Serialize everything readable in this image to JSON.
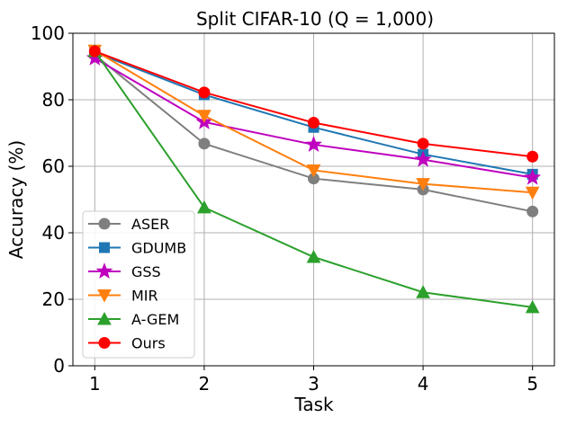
{
  "chart_data": {
    "type": "line",
    "title": "Split CIFAR-10 (Q = 1,000)",
    "xlabel": "Task",
    "ylabel": "Accuracy (%)",
    "x": [
      1,
      2,
      3,
      4,
      5
    ],
    "xticks": [
      "1",
      "2",
      "3",
      "4",
      "5"
    ],
    "yticks": [
      "0",
      "20",
      "40",
      "60",
      "80",
      "100"
    ],
    "xlim": [
      0.8,
      5.2
    ],
    "ylim": [
      0,
      100
    ],
    "grid": true,
    "legend_position": "lower-left",
    "series": [
      {
        "name": "ASER",
        "color": "#7f7f7f",
        "marker": "circle",
        "values": [
          93.5,
          66.8,
          56.3,
          53.0,
          46.4
        ]
      },
      {
        "name": "GDUMB",
        "color": "#1f77b4",
        "marker": "square",
        "values": [
          94.2,
          81.5,
          71.7,
          63.6,
          57.6
        ]
      },
      {
        "name": "GSS",
        "color": "#bf00bf",
        "marker": "star",
        "values": [
          92.5,
          73.3,
          66.5,
          62.0,
          56.6
        ]
      },
      {
        "name": "MIR",
        "color": "#ff7f0e",
        "marker": "triangle-down",
        "values": [
          94.8,
          75.2,
          58.8,
          54.7,
          52.1
        ]
      },
      {
        "name": "A-GEM",
        "color": "#2ca02c",
        "marker": "triangle-up",
        "values": [
          94.6,
          47.6,
          32.7,
          22.1,
          17.6
        ]
      },
      {
        "name": "Ours",
        "color": "#ff0000",
        "marker": "circle",
        "values": [
          94.6,
          82.2,
          73.1,
          66.8,
          62.9
        ]
      }
    ]
  }
}
